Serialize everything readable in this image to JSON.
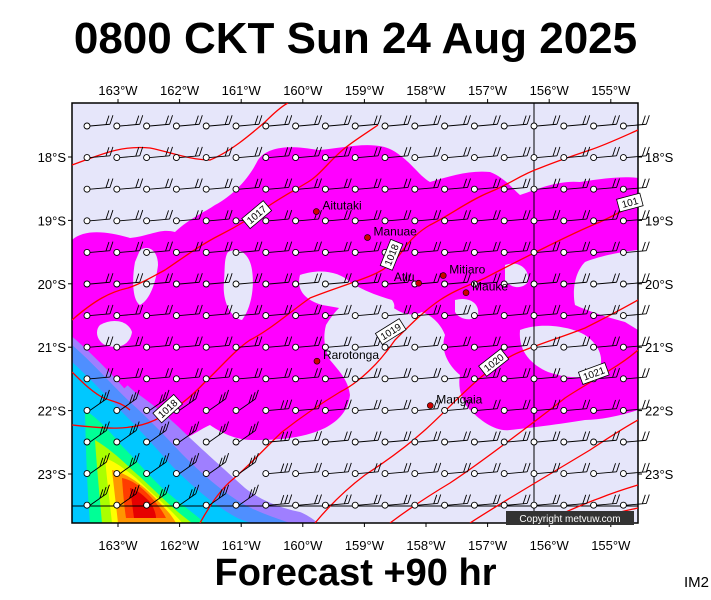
{
  "map": {
    "title": "0800 CKT Sun 24 Aug 2025",
    "footer": "Forecast +90 hr",
    "corner_label": "IM2",
    "copyright": "Copyright metvuw.com",
    "lon_labels": [
      "163°W",
      "162°W",
      "161°W",
      "160°W",
      "159°W",
      "158°W",
      "157°W",
      "156°W",
      "155°W"
    ],
    "lat_labels": [
      "18°S",
      "19°S",
      "20°S",
      "21°S",
      "22°S",
      "23°S"
    ],
    "places": [
      {
        "name": "Aitutaki",
        "lon": -159.78,
        "lat": -18.86
      },
      {
        "name": "Manuae",
        "lon": -158.95,
        "lat": -19.27
      },
      {
        "name": "Atiu",
        "lon": -158.12,
        "lat": -19.99
      },
      {
        "name": "Mitiaro",
        "lon": -157.72,
        "lat": -19.87
      },
      {
        "name": "Mauke",
        "lon": -157.35,
        "lat": -20.14
      },
      {
        "name": "Rarotonga",
        "lon": -159.77,
        "lat": -21.22
      },
      {
        "name": "Mangaia",
        "lon": -157.93,
        "lat": -21.92
      }
    ],
    "isobar_labels": [
      "1017",
      "1018",
      "1019",
      "1020",
      "1021",
      "1018",
      "101"
    ],
    "colors": {
      "background": "#e6e6fa",
      "rain_light": "#ff00ff",
      "isobar": "#ff0000",
      "place_dot": "#cc0000"
    }
  }
}
